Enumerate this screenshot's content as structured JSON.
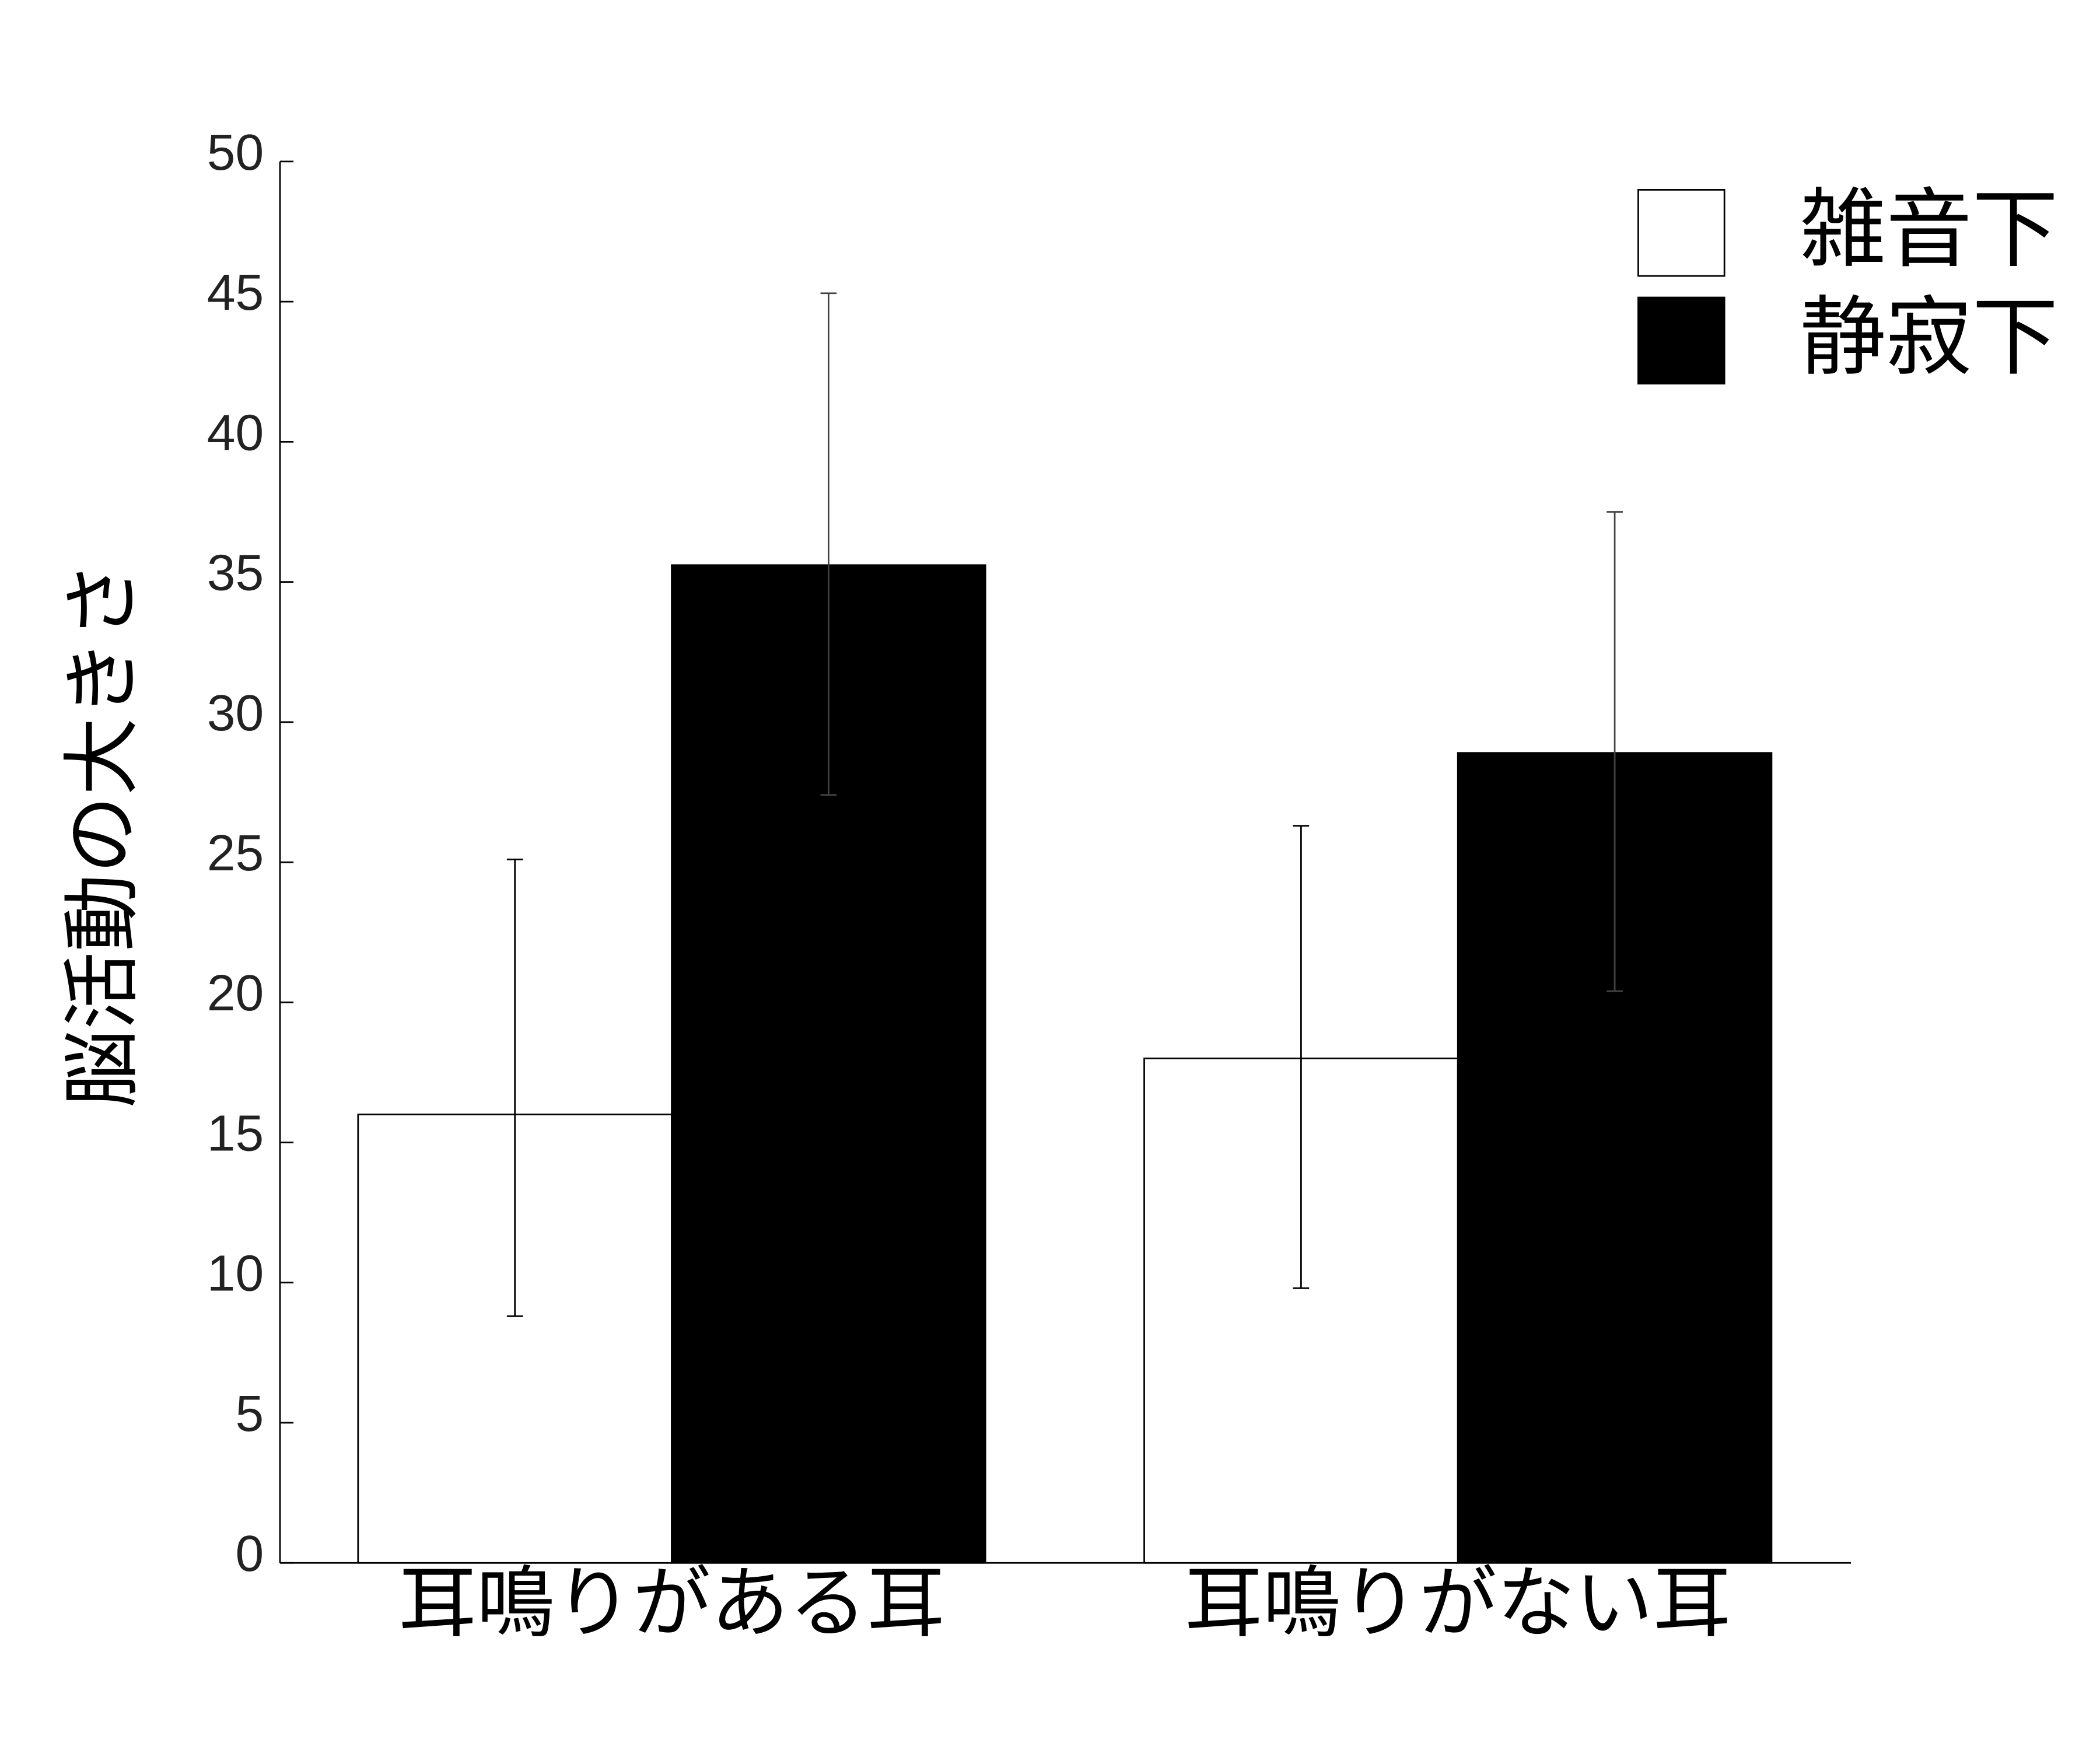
{
  "chart_data": {
    "type": "bar",
    "y_label": "脳活動の大きさ",
    "categories": [
      "耳鳴りがある耳",
      "耳鳴りがない耳"
    ],
    "series": [
      {
        "name": "雑音下",
        "color": "#ffffff",
        "values": [
          16,
          18
        ],
        "errors_minus": [
          7.2,
          8.2
        ],
        "errors_plus": [
          9.1,
          8.3
        ]
      },
      {
        "name": "静寂下",
        "color": "#000000",
        "values": [
          35.6,
          28.9
        ],
        "errors_minus": [
          8.2,
          8.5
        ],
        "errors_plus": [
          9.7,
          8.6
        ]
      }
    ],
    "ylim": [
      0,
      50
    ],
    "yticks": [
      0,
      5,
      10,
      15,
      20,
      25,
      30,
      35,
      40,
      45,
      50
    ],
    "grid": false,
    "legend": "upper right"
  }
}
